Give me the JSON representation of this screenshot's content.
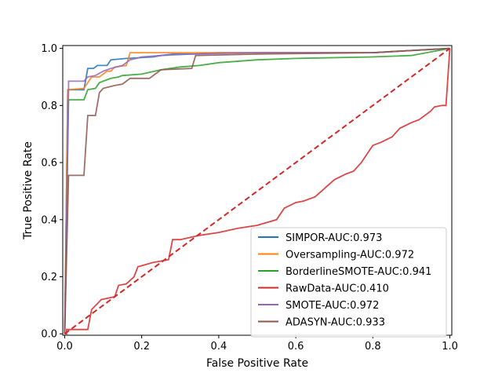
{
  "chart_data": {
    "type": "line",
    "title": "",
    "xlabel": "False Positive Rate",
    "ylabel": "True Positive Rate",
    "xlim": [
      -0.005,
      1.005
    ],
    "ylim": [
      -0.005,
      1.01
    ],
    "xticks": [
      0.0,
      0.2,
      0.4,
      0.6,
      0.8,
      1.0
    ],
    "yticks": [
      0.0,
      0.2,
      0.4,
      0.6,
      0.8,
      1.0
    ],
    "xtick_labels": [
      "0.0",
      "0.2",
      "0.4",
      "0.6",
      "0.8",
      "1.0"
    ],
    "ytick_labels": [
      "0.0",
      "0.2",
      "0.4",
      "0.6",
      "0.8",
      "1.0"
    ],
    "grid": false,
    "legend_position": "lower right",
    "series": [
      {
        "name": "SIMPOR-AUC:0.973",
        "color": "#1f77b4",
        "x": [
          0,
          0.008,
          0.008,
          0.05,
          0.06,
          0.075,
          0.085,
          0.11,
          0.12,
          0.16,
          0.165,
          0.23,
          0.25,
          0.28,
          0.33,
          0.4,
          0.6,
          0.8,
          1.0
        ],
        "y": [
          0,
          0.85,
          0.855,
          0.855,
          0.93,
          0.93,
          0.94,
          0.94,
          0.96,
          0.965,
          0.965,
          0.97,
          0.975,
          0.98,
          0.98,
          0.985,
          0.985,
          0.985,
          1.0
        ]
      },
      {
        "name": "Oversampling-AUC:0.972",
        "color": "#ff7f0e",
        "x": [
          0,
          0.008,
          0.05,
          0.06,
          0.07,
          0.09,
          0.11,
          0.12,
          0.13,
          0.16,
          0.17,
          0.25,
          0.33,
          0.5,
          0.8,
          1.0
        ],
        "y": [
          0,
          0.855,
          0.86,
          0.88,
          0.9,
          0.9,
          0.92,
          0.92,
          0.935,
          0.94,
          0.985,
          0.985,
          0.985,
          0.985,
          0.985,
          1.0
        ]
      },
      {
        "name": "BorderlineSMOTE-AUC:0.941",
        "color": "#2ca02c",
        "x": [
          0,
          0.01,
          0.05,
          0.06,
          0.08,
          0.09,
          0.1,
          0.12,
          0.14,
          0.15,
          0.2,
          0.25,
          0.3,
          0.35,
          0.4,
          0.5,
          0.6,
          0.8,
          0.9,
          1.0
        ],
        "y": [
          0,
          0.82,
          0.82,
          0.855,
          0.86,
          0.88,
          0.885,
          0.895,
          0.9,
          0.905,
          0.91,
          0.925,
          0.935,
          0.94,
          0.95,
          0.96,
          0.965,
          0.97,
          0.975,
          1.0
        ]
      },
      {
        "name": "RawData-AUC:0.410",
        "color": "#d62728",
        "x": [
          0,
          0.005,
          0.005,
          0.06,
          0.07,
          0.095,
          0.13,
          0.14,
          0.16,
          0.18,
          0.19,
          0.23,
          0.27,
          0.28,
          0.3,
          0.35,
          0.4,
          0.45,
          0.5,
          0.55,
          0.57,
          0.6,
          0.62,
          0.65,
          0.7,
          0.73,
          0.75,
          0.77,
          0.8,
          0.82,
          0.85,
          0.87,
          0.9,
          0.92,
          0.95,
          0.96,
          0.98,
          0.99,
          1.0
        ],
        "y": [
          0,
          0.0,
          0.015,
          0.015,
          0.085,
          0.12,
          0.13,
          0.17,
          0.175,
          0.2,
          0.235,
          0.25,
          0.26,
          0.33,
          0.33,
          0.345,
          0.355,
          0.37,
          0.38,
          0.4,
          0.44,
          0.46,
          0.465,
          0.48,
          0.54,
          0.56,
          0.57,
          0.6,
          0.66,
          0.67,
          0.69,
          0.72,
          0.74,
          0.75,
          0.78,
          0.795,
          0.8,
          0.8,
          1.0
        ]
      },
      {
        "name": "SMOTE-AUC:0.972",
        "color": "#9467bd",
        "x": [
          0,
          0.01,
          0.01,
          0.05,
          0.06,
          0.08,
          0.1,
          0.12,
          0.15,
          0.17,
          0.2,
          0.25,
          0.33,
          0.5,
          0.8,
          1.0
        ],
        "y": [
          0,
          0.855,
          0.885,
          0.885,
          0.9,
          0.905,
          0.92,
          0.93,
          0.94,
          0.96,
          0.97,
          0.975,
          0.98,
          0.985,
          0.985,
          1.0
        ]
      },
      {
        "name": "ADASYN-AUC:0.933",
        "color": "#8c564b",
        "x": [
          0,
          0.01,
          0.01,
          0.05,
          0.06,
          0.08,
          0.09,
          0.1,
          0.13,
          0.15,
          0.17,
          0.22,
          0.25,
          0.33,
          0.34,
          0.5,
          0.8,
          1.0
        ],
        "y": [
          0,
          0.555,
          0.555,
          0.555,
          0.765,
          0.765,
          0.845,
          0.86,
          0.87,
          0.875,
          0.895,
          0.895,
          0.925,
          0.93,
          0.975,
          0.98,
          0.985,
          1.0
        ]
      }
    ],
    "reference_line": {
      "color": "#d62728",
      "style": "dashed",
      "x": [
        0,
        1
      ],
      "y": [
        0,
        1
      ]
    }
  }
}
